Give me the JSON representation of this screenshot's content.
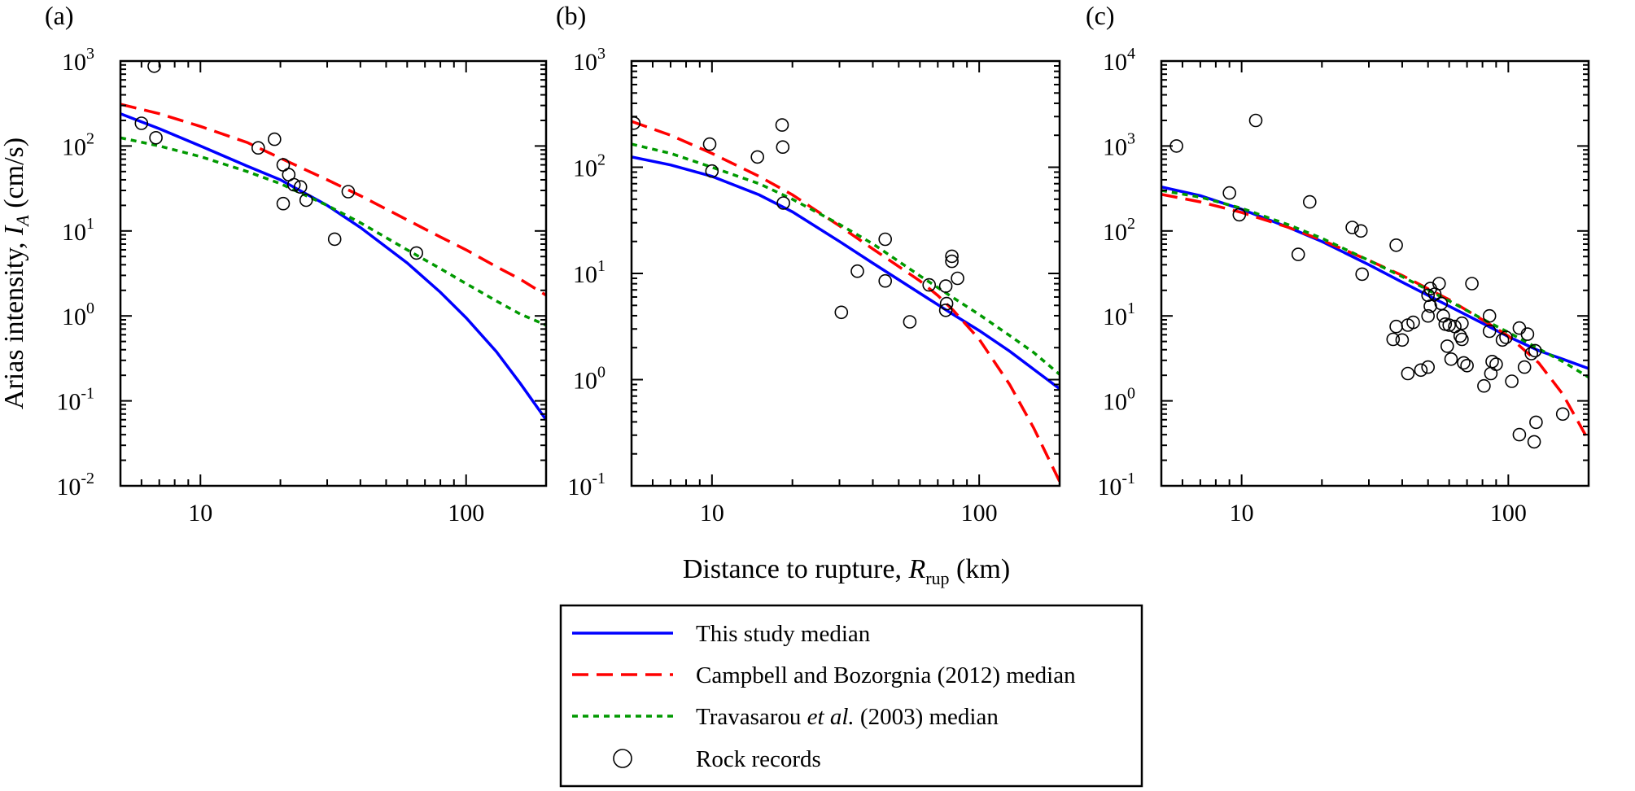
{
  "chart_data": {
    "type": "scatter",
    "xlabel_prefix": "Distance to rupture, ",
    "xlabel_var": "R",
    "xlabel_sub": "rup",
    "xlabel_suffix": " (km)",
    "ylabel_prefix": "Arias intensity, ",
    "ylabel_var": "I",
    "ylabel_sub": "A",
    "ylabel_suffix": "  (cm/s)",
    "x_scale": "log",
    "y_scale": "log",
    "xlim": [
      5,
      200
    ],
    "x_tick_labels": [
      "10",
      "100"
    ],
    "x_tick_values": [
      10,
      100
    ],
    "legend_position": "bottom-center",
    "legend": [
      {
        "label_parts": [
          {
            "text": "This study median",
            "italic": false
          }
        ],
        "style": "solid",
        "color": "#0000ff",
        "marker": "line"
      },
      {
        "label_parts": [
          {
            "text": "Campbell and Bozorgnia (2012) median",
            "italic": false
          }
        ],
        "style": "dashed",
        "color": "#ff0000",
        "marker": "line"
      },
      {
        "label_parts": [
          {
            "text": "Travasarou ",
            "italic": false
          },
          {
            "text": "et al.",
            "italic": true
          },
          {
            "text": " (2003) median",
            "italic": false
          }
        ],
        "style": "dotted",
        "color": "#009900",
        "marker": "line"
      },
      {
        "label_parts": [
          {
            "text": "Rock records",
            "italic": false
          }
        ],
        "style": "none",
        "color": "#000000",
        "marker": "circle"
      }
    ],
    "panels": [
      {
        "label": "(a)",
        "ylim_exp": [
          -2,
          3
        ],
        "y_tick_labels": [
          {
            "base": "10",
            "exp": "-2"
          },
          {
            "base": "10",
            "exp": "-1"
          },
          {
            "base": "10",
            "exp": "0"
          },
          {
            "base": "10",
            "exp": "1"
          },
          {
            "base": "10",
            "exp": "2"
          },
          {
            "base": "10",
            "exp": "3"
          }
        ],
        "series": [
          {
            "name": "This study median",
            "x": [
              5,
              7,
              10,
              15,
              20,
              30,
              40,
              60,
              80,
              100,
              130,
              160,
              200
            ],
            "y": [
              240,
              160,
              100,
              58,
              40,
              20,
              11,
              4.2,
              1.9,
              0.95,
              0.38,
              0.16,
              0.06
            ]
          },
          {
            "name": "Campbell and Bozorgnia (2012) median",
            "x": [
              5,
              7,
              10,
              15,
              20,
              30,
              40,
              60,
              80,
              100,
              130,
              160,
              200
            ],
            "y": [
              310,
              240,
              170,
              110,
              72,
              40,
              26,
              13.5,
              8.5,
              6,
              3.8,
              2.7,
              1.75
            ]
          },
          {
            "name": "Travasarou et al. (2003) median",
            "x": [
              5,
              7,
              10,
              15,
              20,
              30,
              40,
              60,
              80,
              100,
              130,
              160,
              200
            ],
            "y": [
              125,
              100,
              75,
              50,
              36,
              20,
              12.5,
              6,
              3.6,
              2.4,
              1.5,
              1.05,
              0.78
            ]
          },
          {
            "name": "Rock records",
            "points": [
              [
                6.7,
                870
              ],
              [
                6,
                185
              ],
              [
                6.8,
                125
              ],
              [
                16.5,
                95
              ],
              [
                19,
                120
              ],
              [
                20.5,
                60
              ],
              [
                21.5,
                46
              ],
              [
                22.5,
                35
              ],
              [
                23.8,
                33
              ],
              [
                25,
                23
              ],
              [
                20.5,
                21
              ],
              [
                36,
                29
              ],
              [
                32,
                8
              ],
              [
                65,
                5.5
              ]
            ]
          }
        ]
      },
      {
        "label": "(b)",
        "ylim_exp": [
          -1,
          3
        ],
        "y_tick_labels": [
          {
            "base": "10",
            "exp": "-1"
          },
          {
            "base": "10",
            "exp": "0"
          },
          {
            "base": "10",
            "exp": "1"
          },
          {
            "base": "10",
            "exp": "2"
          },
          {
            "base": "10",
            "exp": "3"
          }
        ],
        "series": [
          {
            "name": "This study median",
            "x": [
              5,
              7,
              10,
              15,
              20,
              30,
              40,
              60,
              80,
              100,
              130,
              160,
              200
            ],
            "y": [
              125,
              105,
              82,
              55,
              38,
              20,
              12.5,
              6.5,
              4.1,
              2.9,
              1.85,
              1.25,
              0.82
            ]
          },
          {
            "name": "Campbell and Bozorgnia (2012) median",
            "x": [
              5,
              7,
              10,
              15,
              20,
              30,
              40,
              60,
              70,
              80,
              100,
              130,
              160,
              200
            ],
            "y": [
              270,
              200,
              135,
              82,
              55,
              28,
              17,
              8.5,
              6.2,
              4.5,
              2.4,
              0.9,
              0.35,
              0.11
            ]
          },
          {
            "name": "Travasarou et al. (2003) median",
            "x": [
              5,
              7,
              10,
              15,
              20,
              30,
              40,
              60,
              80,
              100,
              130,
              160,
              200
            ],
            "y": [
              165,
              135,
              100,
              70,
              50,
              29,
              19,
              9.5,
              5.9,
              4.1,
              2.6,
              1.8,
              1.12
            ]
          },
          {
            "name": "Rock records",
            "points": [
              [
                5.1,
                260
              ],
              [
                9.8,
                165
              ],
              [
                10,
                92
              ],
              [
                14.8,
                125
              ],
              [
                18.3,
                250
              ],
              [
                18.4,
                155
              ],
              [
                18.5,
                46
              ],
              [
                35,
                10.5
              ],
              [
                44.5,
                21
              ],
              [
                44.5,
                8.5
              ],
              [
                30.5,
                4.3
              ],
              [
                55,
                3.5
              ],
              [
                65,
                7.8
              ],
              [
                75,
                7.6
              ],
              [
                75,
                4.5
              ],
              [
                75.5,
                5.2
              ],
              [
                79,
                14.5
              ],
              [
                79,
                13
              ],
              [
                83,
                9
              ]
            ]
          }
        ]
      },
      {
        "label": "(c)",
        "ylim_exp": [
          -1,
          4
        ],
        "y_tick_labels": [
          {
            "base": "10",
            "exp": "-1"
          },
          {
            "base": "10",
            "exp": "0"
          },
          {
            "base": "10",
            "exp": "1"
          },
          {
            "base": "10",
            "exp": "2"
          },
          {
            "base": "10",
            "exp": "3"
          },
          {
            "base": "10",
            "exp": "4"
          }
        ],
        "series": [
          {
            "name": "This study median",
            "x": [
              5,
              7,
              10,
              15,
              20,
              30,
              40,
              60,
              80,
              100,
              130,
              160,
              200
            ],
            "y": [
              330,
              260,
              180,
              110,
              75,
              40,
              25,
              13,
              8.2,
              5.7,
              3.9,
              3.1,
              2.4
            ]
          },
          {
            "name": "Campbell and Bozorgnia (2012) median",
            "x": [
              5,
              7,
              10,
              15,
              20,
              30,
              40,
              60,
              80,
              100,
              130,
              160,
              200
            ],
            "y": [
              270,
              220,
              165,
              110,
              78,
              45,
              30,
              15.5,
              9,
              5.8,
              2.8,
              1.2,
              0.34
            ]
          },
          {
            "name": "Travasarou et al. (2003) median",
            "x": [
              5,
              7,
              10,
              15,
              20,
              30,
              40,
              60,
              80,
              100,
              130,
              160,
              200
            ],
            "y": [
              300,
              250,
              185,
              118,
              82,
              45,
              29,
              15,
              9.2,
              6.4,
              4.1,
              2.9,
              1.9
            ]
          },
          {
            "name": "Rock records",
            "points": [
              [
                5.7,
                1000
              ],
              [
                11.3,
                2000
              ],
              [
                9,
                280
              ],
              [
                9.8,
                155
              ],
              [
                18,
                220
              ],
              [
                16.3,
                53
              ],
              [
                26,
                110
              ],
              [
                28,
                100
              ],
              [
                28.3,
                31
              ],
              [
                38,
                68
              ],
              [
                73,
                24
              ],
              [
                37,
                5.3
              ],
              [
                40,
                5.2
              ],
              [
                38,
                7.5
              ],
              [
                42,
                7.8
              ],
              [
                44,
                8.4
              ],
              [
                42,
                2.1
              ],
              [
                47,
                2.3
              ],
              [
                50,
                2.5
              ],
              [
                50,
                10
              ],
              [
                50,
                17.5
              ],
              [
                51,
                13
              ],
              [
                51,
                21
              ],
              [
                53,
                18
              ],
              [
                55,
                24
              ],
              [
                56,
                14
              ],
              [
                57,
                10
              ],
              [
                58,
                8
              ],
              [
                60,
                7.8
              ],
              [
                59,
                4.4
              ],
              [
                61,
                3.1
              ],
              [
                63,
                7.5
              ],
              [
                66,
                5.8
              ],
              [
                67,
                5.3
              ],
              [
                67,
                8.2
              ],
              [
                68,
                2.8
              ],
              [
                70,
                2.6
              ],
              [
                81,
                1.5
              ],
              [
                85,
                10
              ],
              [
                85,
                6.6
              ],
              [
                86,
                2.1
              ],
              [
                87,
                2.9
              ],
              [
                90,
                2.7
              ],
              [
                95,
                5.2
              ],
              [
                98,
                5.6
              ],
              [
                103,
                1.7
              ],
              [
                110,
                7.2
              ],
              [
                110,
                0.4
              ],
              [
                115,
                2.5
              ],
              [
                118,
                6.1
              ],
              [
                122,
                3.6
              ],
              [
                125,
                0.33
              ],
              [
                126,
                3.9
              ],
              [
                127,
                0.56
              ],
              [
                160,
                0.7
              ]
            ]
          }
        ]
      }
    ]
  }
}
